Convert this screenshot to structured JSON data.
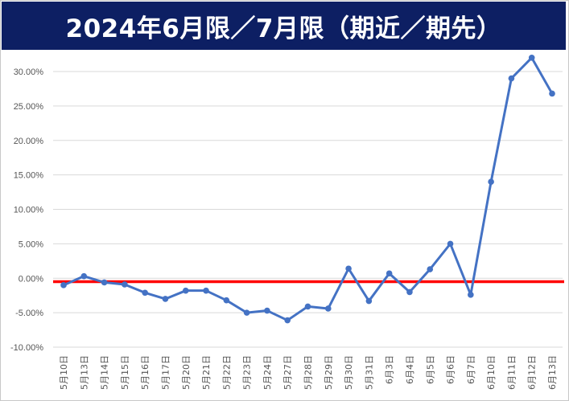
{
  "title": "2024年6月限／7月限（期近／期先）",
  "colors": {
    "title_bg": "#0d1f63",
    "title_text": "#ffffff",
    "series_line": "#4472c4",
    "reference_line": "#ff0000",
    "grid": "#d9d9d9"
  },
  "chart_data": {
    "type": "line",
    "title": "2024年6月限／7月限（期近／期先）",
    "xlabel": "",
    "ylabel": "",
    "ylim": [
      -10,
      30
    ],
    "y_ticks": [
      "30.00%",
      "25.00%",
      "20.00%",
      "15.00%",
      "10.00%",
      "5.00%",
      "0.00%",
      "-5.00%",
      "-10.00%"
    ],
    "y_tick_values": [
      30,
      25,
      20,
      15,
      10,
      5,
      0,
      -5,
      -10
    ],
    "grid": true,
    "legend": "none",
    "categories": [
      "5月10日",
      "5月13日",
      "5月14日",
      "5月15日",
      "5月16日",
      "5月17日",
      "5月20日",
      "5月21日",
      "5月22日",
      "5月23日",
      "5月24日",
      "5月27日",
      "5月28日",
      "5月29日",
      "5月30日",
      "5月31日",
      "6月3日",
      "6月4日",
      "6月5日",
      "6月6日",
      "6月7日",
      "6月10日",
      "6月11日",
      "6月12日",
      "6月13日"
    ],
    "series": [
      {
        "values": [
          -1.0,
          0.3,
          -0.6,
          -0.9,
          -2.1,
          -3.0,
          -1.8,
          -1.8,
          -3.2,
          -5.0,
          -4.7,
          -6.1,
          -4.1,
          -4.4,
          1.4,
          -3.3,
          0.7,
          -2.0,
          1.3,
          5.0,
          -2.4,
          14.0,
          29.0,
          32.0,
          26.8
        ]
      }
    ],
    "reference_line": {
      "y": -0.5
    }
  }
}
